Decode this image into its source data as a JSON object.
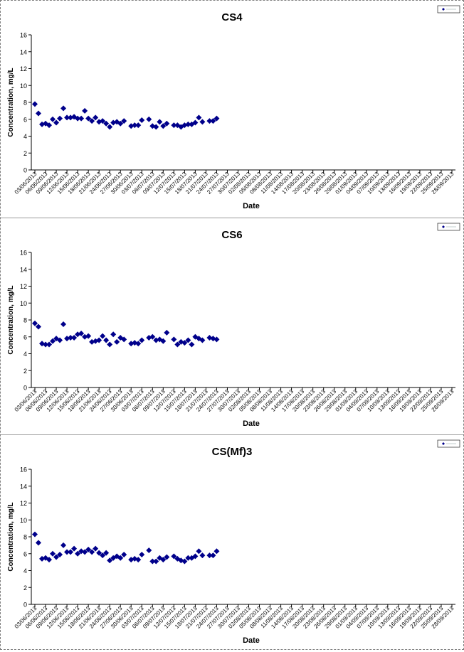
{
  "chart_data": [
    {
      "type": "scatter",
      "title": "CS4",
      "xlabel": "Date",
      "ylabel": "Concentration, mg/L",
      "ylim": [
        0,
        16
      ],
      "yticks": [
        0,
        2,
        4,
        6,
        8,
        10,
        12,
        14,
        16
      ],
      "grid": false,
      "legend_placement": "top-right",
      "marker_color": "#00008B",
      "marker": "diamond",
      "x_tick_labels": [
        "03/06/2013",
        "06/06/2013",
        "09/06/2013",
        "12/06/2013",
        "15/06/2013",
        "18/06/2013",
        "21/06/2013",
        "24/06/2013",
        "27/06/2013",
        "30/06/2013",
        "03/07/2013",
        "06/07/2013",
        "09/07/2013",
        "12/07/2013",
        "15/07/2013",
        "18/07/2013",
        "21/07/2013",
        "24/07/2013",
        "27/07/2013",
        "30/07/2013",
        "02/08/2013",
        "05/08/2013",
        "08/08/2013",
        "11/08/2013",
        "14/08/2013",
        "17/08/2013",
        "20/08/2013",
        "23/08/2013",
        "26/08/2013",
        "29/08/2013",
        "01/09/2013",
        "04/09/2013",
        "07/09/2013",
        "10/09/2013",
        "13/09/2013",
        "16/09/2013",
        "19/09/2013",
        "22/09/2013",
        "25/09/2013",
        "28/09/2013"
      ],
      "points": [
        {
          "x": "03/06/2013",
          "y": 7.8
        },
        {
          "x": "04/06/2013",
          "y": 6.7
        },
        {
          "x": "05/06/2013",
          "y": 5.4
        },
        {
          "x": "06/06/2013",
          "y": 5.5
        },
        {
          "x": "07/06/2013",
          "y": 5.3
        },
        {
          "x": "08/06/2013",
          "y": 6.0
        },
        {
          "x": "09/06/2013",
          "y": 5.6
        },
        {
          "x": "10/06/2013",
          "y": 6.1
        },
        {
          "x": "11/06/2013",
          "y": 7.3
        },
        {
          "x": "12/06/2013",
          "y": 6.2
        },
        {
          "x": "13/06/2013",
          "y": 6.2
        },
        {
          "x": "14/06/2013",
          "y": 6.3
        },
        {
          "x": "15/06/2013",
          "y": 6.1
        },
        {
          "x": "16/06/2013",
          "y": 6.1
        },
        {
          "x": "17/06/2013",
          "y": 7.0
        },
        {
          "x": "18/06/2013",
          "y": 6.1
        },
        {
          "x": "19/06/2013",
          "y": 5.8
        },
        {
          "x": "20/06/2013",
          "y": 6.2
        },
        {
          "x": "21/06/2013",
          "y": 5.7
        },
        {
          "x": "22/06/2013",
          "y": 5.8
        },
        {
          "x": "23/06/2013",
          "y": 5.5
        },
        {
          "x": "24/06/2013",
          "y": 5.1
        },
        {
          "x": "25/06/2013",
          "y": 5.6
        },
        {
          "x": "26/06/2013",
          "y": 5.7
        },
        {
          "x": "27/06/2013",
          "y": 5.5
        },
        {
          "x": "28/06/2013",
          "y": 5.8
        },
        {
          "x": "30/06/2013",
          "y": 5.2
        },
        {
          "x": "01/07/2013",
          "y": 5.3
        },
        {
          "x": "02/07/2013",
          "y": 5.3
        },
        {
          "x": "03/07/2013",
          "y": 5.9
        },
        {
          "x": "05/07/2013",
          "y": 6.0
        },
        {
          "x": "06/07/2013",
          "y": 5.2
        },
        {
          "x": "07/07/2013",
          "y": 5.1
        },
        {
          "x": "08/07/2013",
          "y": 5.7
        },
        {
          "x": "09/07/2013",
          "y": 5.2
        },
        {
          "x": "10/07/2013",
          "y": 5.5
        },
        {
          "x": "12/07/2013",
          "y": 5.3
        },
        {
          "x": "13/07/2013",
          "y": 5.3
        },
        {
          "x": "14/07/2013",
          "y": 5.1
        },
        {
          "x": "15/07/2013",
          "y": 5.3
        },
        {
          "x": "16/07/2013",
          "y": 5.4
        },
        {
          "x": "17/07/2013",
          "y": 5.4
        },
        {
          "x": "18/07/2013",
          "y": 5.6
        },
        {
          "x": "19/07/2013",
          "y": 6.2
        },
        {
          "x": "20/07/2013",
          "y": 5.7
        },
        {
          "x": "22/07/2013",
          "y": 5.8
        },
        {
          "x": "23/07/2013",
          "y": 5.8
        },
        {
          "x": "24/07/2013",
          "y": 6.1
        }
      ]
    },
    {
      "type": "scatter",
      "title": "CS6",
      "xlabel": "Date",
      "ylabel": "Concentration, mg/L",
      "ylim": [
        0,
        16
      ],
      "yticks": [
        0,
        2,
        4,
        6,
        8,
        10,
        12,
        14,
        16
      ],
      "grid": false,
      "legend_placement": "top-right",
      "marker_color": "#00008B",
      "marker": "diamond",
      "x_tick_labels": [
        "03/06/2013",
        "06/06/2013",
        "09/06/2013",
        "12/06/2013",
        "15/06/2013",
        "18/06/2013",
        "21/06/2013",
        "24/06/2013",
        "27/06/2013",
        "30/06/2013",
        "03/07/2013",
        "06/07/2013",
        "09/07/2013",
        "12/07/2013",
        "15/07/2013",
        "18/07/2013",
        "21/07/2013",
        "24/07/2013",
        "27/07/2013",
        "30/07/2013",
        "02/08/2013",
        "05/08/2013",
        "08/08/2013",
        "11/08/2013",
        "14/08/2013",
        "17/08/2013",
        "20/08/2013",
        "23/08/2013",
        "26/08/2013",
        "29/08/2013",
        "01/09/2013",
        "04/09/2013",
        "07/09/2013",
        "10/09/2013",
        "13/09/2013",
        "16/09/2013",
        "19/09/2013",
        "22/09/2013",
        "25/09/2013",
        "28/09/2013"
      ],
      "points": [
        {
          "x": "03/06/2013",
          "y": 7.6
        },
        {
          "x": "04/06/2013",
          "y": 7.2
        },
        {
          "x": "05/06/2013",
          "y": 5.2
        },
        {
          "x": "06/06/2013",
          "y": 5.1
        },
        {
          "x": "07/06/2013",
          "y": 5.1
        },
        {
          "x": "08/06/2013",
          "y": 5.5
        },
        {
          "x": "09/06/2013",
          "y": 5.8
        },
        {
          "x": "10/06/2013",
          "y": 5.6
        },
        {
          "x": "11/06/2013",
          "y": 7.5
        },
        {
          "x": "12/06/2013",
          "y": 5.8
        },
        {
          "x": "13/06/2013",
          "y": 5.9
        },
        {
          "x": "14/06/2013",
          "y": 5.9
        },
        {
          "x": "15/06/2013",
          "y": 6.3
        },
        {
          "x": "16/06/2013",
          "y": 6.4
        },
        {
          "x": "17/06/2013",
          "y": 6.0
        },
        {
          "x": "18/06/2013",
          "y": 6.1
        },
        {
          "x": "19/06/2013",
          "y": 5.4
        },
        {
          "x": "20/06/2013",
          "y": 5.5
        },
        {
          "x": "21/06/2013",
          "y": 5.6
        },
        {
          "x": "22/06/2013",
          "y": 6.1
        },
        {
          "x": "23/06/2013",
          "y": 5.6
        },
        {
          "x": "24/06/2013",
          "y": 5.1
        },
        {
          "x": "25/06/2013",
          "y": 6.3
        },
        {
          "x": "26/06/2013",
          "y": 5.4
        },
        {
          "x": "27/06/2013",
          "y": 5.9
        },
        {
          "x": "28/06/2013",
          "y": 5.7
        },
        {
          "x": "30/06/2013",
          "y": 5.2
        },
        {
          "x": "01/07/2013",
          "y": 5.3
        },
        {
          "x": "02/07/2013",
          "y": 5.2
        },
        {
          "x": "03/07/2013",
          "y": 5.6
        },
        {
          "x": "05/07/2013",
          "y": 5.9
        },
        {
          "x": "06/07/2013",
          "y": 6.0
        },
        {
          "x": "07/07/2013",
          "y": 5.6
        },
        {
          "x": "08/07/2013",
          "y": 5.7
        },
        {
          "x": "09/07/2013",
          "y": 5.5
        },
        {
          "x": "10/07/2013",
          "y": 6.5
        },
        {
          "x": "12/07/2013",
          "y": 5.7
        },
        {
          "x": "13/07/2013",
          "y": 5.1
        },
        {
          "x": "14/07/2013",
          "y": 5.4
        },
        {
          "x": "15/07/2013",
          "y": 5.3
        },
        {
          "x": "16/07/2013",
          "y": 5.6
        },
        {
          "x": "17/07/2013",
          "y": 5.1
        },
        {
          "x": "18/07/2013",
          "y": 6.0
        },
        {
          "x": "19/07/2013",
          "y": 5.8
        },
        {
          "x": "20/07/2013",
          "y": 5.6
        },
        {
          "x": "22/07/2013",
          "y": 5.9
        },
        {
          "x": "23/07/2013",
          "y": 5.8
        },
        {
          "x": "24/07/2013",
          "y": 5.7
        }
      ]
    },
    {
      "type": "scatter",
      "title": "CS(Mf)3",
      "xlabel": "Date",
      "ylabel": "Concentration, mg/L",
      "ylim": [
        0,
        16
      ],
      "yticks": [
        0,
        2,
        4,
        6,
        8,
        10,
        12,
        14,
        16
      ],
      "grid": false,
      "legend_placement": "top-right",
      "marker_color": "#00008B",
      "marker": "diamond",
      "x_tick_labels": [
        "03/06/2013",
        "06/06/2013",
        "09/06/2013",
        "12/06/2013",
        "15/06/2013",
        "18/06/2013",
        "21/06/2013",
        "24/06/2013",
        "27/06/2013",
        "30/06/2013",
        "03/07/2013",
        "06/07/2013",
        "09/07/2013",
        "12/07/2013",
        "15/07/2013",
        "18/07/2013",
        "21/07/2013",
        "24/07/2013",
        "27/07/2013",
        "30/07/2013",
        "02/08/2013",
        "05/08/2013",
        "08/08/2013",
        "11/08/2013",
        "14/08/2013",
        "17/08/2013",
        "20/08/2013",
        "23/08/2013",
        "26/08/2013",
        "29/08/2013",
        "01/09/2013",
        "04/09/2013",
        "07/09/2013",
        "10/09/2013",
        "13/09/2013",
        "16/09/2013",
        "19/09/2013",
        "22/09/2013",
        "25/09/2013",
        "28/09/2013"
      ],
      "points": [
        {
          "x": "03/06/2013",
          "y": 8.3
        },
        {
          "x": "04/06/2013",
          "y": 7.3
        },
        {
          "x": "05/06/2013",
          "y": 5.4
        },
        {
          "x": "06/06/2013",
          "y": 5.5
        },
        {
          "x": "07/06/2013",
          "y": 5.3
        },
        {
          "x": "08/06/2013",
          "y": 6.0
        },
        {
          "x": "09/06/2013",
          "y": 5.6
        },
        {
          "x": "10/06/2013",
          "y": 5.9
        },
        {
          "x": "11/06/2013",
          "y": 7.0
        },
        {
          "x": "12/06/2013",
          "y": 6.2
        },
        {
          "x": "13/06/2013",
          "y": 6.2
        },
        {
          "x": "14/06/2013",
          "y": 6.6
        },
        {
          "x": "15/06/2013",
          "y": 6.0
        },
        {
          "x": "16/06/2013",
          "y": 6.3
        },
        {
          "x": "17/06/2013",
          "y": 6.2
        },
        {
          "x": "18/06/2013",
          "y": 6.5
        },
        {
          "x": "19/06/2013",
          "y": 6.2
        },
        {
          "x": "20/06/2013",
          "y": 6.6
        },
        {
          "x": "21/06/2013",
          "y": 6.1
        },
        {
          "x": "22/06/2013",
          "y": 5.8
        },
        {
          "x": "23/06/2013",
          "y": 6.1
        },
        {
          "x": "24/06/2013",
          "y": 5.2
        },
        {
          "x": "25/06/2013",
          "y": 5.5
        },
        {
          "x": "26/06/2013",
          "y": 5.7
        },
        {
          "x": "27/06/2013",
          "y": 5.5
        },
        {
          "x": "28/06/2013",
          "y": 5.9
        },
        {
          "x": "30/06/2013",
          "y": 5.3
        },
        {
          "x": "01/07/2013",
          "y": 5.4
        },
        {
          "x": "02/07/2013",
          "y": 5.3
        },
        {
          "x": "03/07/2013",
          "y": 5.9
        },
        {
          "x": "05/07/2013",
          "y": 6.4
        },
        {
          "x": "06/07/2013",
          "y": 5.1
        },
        {
          "x": "07/07/2013",
          "y": 5.1
        },
        {
          "x": "08/07/2013",
          "y": 5.5
        },
        {
          "x": "09/07/2013",
          "y": 5.3
        },
        {
          "x": "10/07/2013",
          "y": 5.6
        },
        {
          "x": "12/07/2013",
          "y": 5.7
        },
        {
          "x": "13/07/2013",
          "y": 5.4
        },
        {
          "x": "14/07/2013",
          "y": 5.2
        },
        {
          "x": "15/07/2013",
          "y": 5.1
        },
        {
          "x": "16/07/2013",
          "y": 5.5
        },
        {
          "x": "17/07/2013",
          "y": 5.5
        },
        {
          "x": "18/07/2013",
          "y": 5.7
        },
        {
          "x": "19/07/2013",
          "y": 6.3
        },
        {
          "x": "20/07/2013",
          "y": 5.8
        },
        {
          "x": "22/07/2013",
          "y": 5.8
        },
        {
          "x": "23/07/2013",
          "y": 5.8
        },
        {
          "x": "24/07/2013",
          "y": 6.3
        }
      ]
    }
  ]
}
